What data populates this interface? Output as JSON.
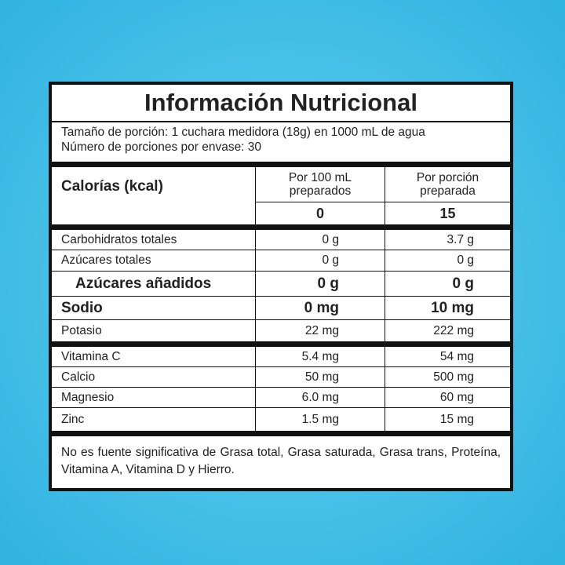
{
  "title": "Información Nutricional",
  "serving": [
    "Tamaño de porción: 1 cuchara medidora (18g) en 1000 mL de agua",
    "Número de porciones por envase: 30"
  ],
  "calories": {
    "label": "Calorías (kcal)",
    "headers": [
      [
        "Por 100 mL",
        "preparados"
      ],
      [
        "Por porción",
        "preparada"
      ]
    ],
    "values": [
      "0",
      "15"
    ]
  },
  "nutrients": {
    "rows": [
      [
        "Carbohidratos totales",
        "0 g",
        "3.7 g"
      ],
      [
        "Azúcares totales",
        "0 g",
        "0 g"
      ],
      [
        "Azúcares añadidos",
        "0 g",
        "0 g"
      ],
      [
        "Sodio",
        "0 mg",
        "10 mg"
      ],
      [
        "Potasio",
        "22 mg",
        "222 mg"
      ]
    ]
  },
  "minerals": {
    "rows": [
      [
        "Vitamina C",
        "5.4 mg",
        "54 mg"
      ],
      [
        "Calcio",
        "50 mg",
        "500 mg"
      ],
      [
        "Magnesio",
        "6.0 mg",
        "60 mg"
      ],
      [
        "Zinc",
        "1.5 mg",
        "15 mg"
      ]
    ]
  },
  "footer": "No es fuente significativa de Grasa total, Grasa saturada, Grasa trans, Proteína, Vitamina A, Vitamina D y Hierro."
}
